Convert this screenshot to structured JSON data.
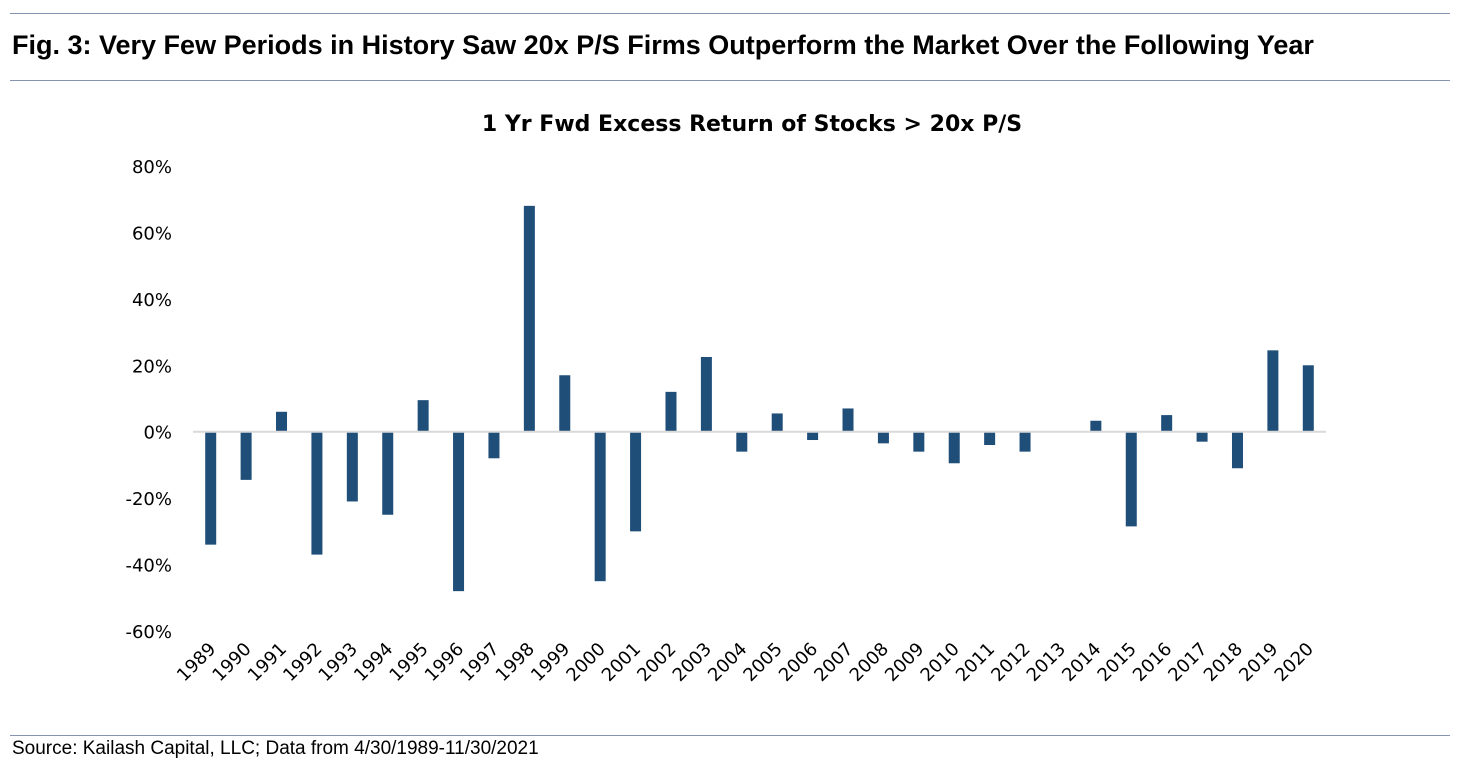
{
  "figure_title": "Fig. 3: Very Few Periods in History Saw 20x P/S Firms Outperform the Market Over the Following Year",
  "source": "Source: Kailash Capital, LLC; Data from 4/30/1989-11/30/2021",
  "chart_data": {
    "type": "bar",
    "title": "1 Yr Fwd Excess Return of Stocks > 20x P/S",
    "xlabel": "",
    "ylabel": "",
    "ylim": [
      -60,
      80
    ],
    "yticks": [
      80,
      60,
      40,
      20,
      0,
      -20,
      -40,
      -60
    ],
    "ytick_labels": [
      "80%",
      "60%",
      "40%",
      "20%",
      "0%",
      "-20%",
      "-40%",
      "-60%"
    ],
    "grid": false,
    "bar_color": "#1f4e79",
    "categories": [
      "1989",
      "1990",
      "1991",
      "1992",
      "1993",
      "1994",
      "1995",
      "1996",
      "1997",
      "1998",
      "1999",
      "2000",
      "2001",
      "2002",
      "2003",
      "2004",
      "2005",
      "2006",
      "2007",
      "2008",
      "2009",
      "2010",
      "2011",
      "2012",
      "2013",
      "2014",
      "2015",
      "2016",
      "2017",
      "2018",
      "2019",
      "2020"
    ],
    "values": [
      -34,
      -14.5,
      6,
      -37,
      -21,
      -25,
      9.5,
      -48,
      -8,
      68,
      17,
      -45,
      -30,
      12,
      22.5,
      -6,
      5.5,
      -2.5,
      7,
      -3.5,
      -6,
      -9.5,
      -4,
      -6,
      0,
      3.3,
      -28.5,
      5,
      -3,
      -11,
      24.5,
      20
    ]
  }
}
